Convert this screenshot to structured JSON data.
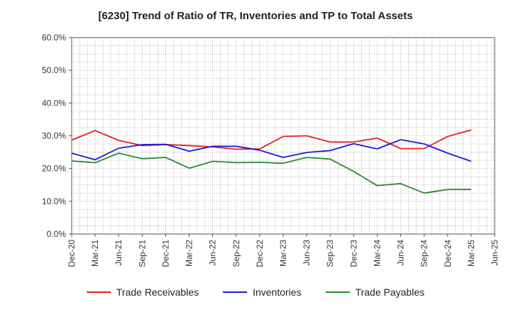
{
  "chart_data": {
    "type": "line",
    "title": "[6230]  Trend of Ratio of TR, Inventories and TP to Total Assets",
    "xlabel": "",
    "ylabel": "",
    "categories": [
      "Dec-20",
      "Mar-21",
      "Jun-21",
      "Sep-21",
      "Dec-21",
      "Mar-22",
      "Jun-22",
      "Sep-22",
      "Dec-22",
      "Mar-23",
      "Jun-23",
      "Sep-23",
      "Dec-23",
      "Mar-24",
      "Jun-24",
      "Sep-24",
      "Dec-24",
      "Mar-25",
      "Jun-25"
    ],
    "ylim": [
      0,
      60
    ],
    "yticks": [
      0,
      10,
      20,
      30,
      40,
      50,
      60
    ],
    "ytick_labels": [
      "0.0%",
      "10.0%",
      "20.0%",
      "30.0%",
      "40.0%",
      "50.0%",
      "60.0%"
    ],
    "grid": true,
    "legend_position": "bottom",
    "series": [
      {
        "name": "Trade Receivables",
        "color": "#e8201e",
        "values": [
          28.7,
          31.6,
          28.6,
          27.0,
          27.3,
          27.0,
          26.6,
          25.9,
          26.0,
          29.8,
          30.0,
          28.1,
          28.1,
          29.3,
          26.1,
          26.1,
          29.8,
          31.8,
          null
        ]
      },
      {
        "name": "Inventories",
        "color": "#1a1ad6",
        "values": [
          24.7,
          22.7,
          26.2,
          27.3,
          27.4,
          25.3,
          26.8,
          26.8,
          25.6,
          23.4,
          24.9,
          25.5,
          27.6,
          26.0,
          28.8,
          27.5,
          24.7,
          22.2,
          null
        ]
      },
      {
        "name": "Trade Payables",
        "color": "#2b8b2b",
        "values": [
          22.3,
          21.8,
          24.7,
          23.0,
          23.4,
          20.1,
          22.2,
          21.8,
          21.9,
          21.6,
          23.4,
          22.9,
          19.1,
          14.8,
          15.4,
          12.5,
          13.6,
          13.6,
          null
        ]
      }
    ]
  }
}
